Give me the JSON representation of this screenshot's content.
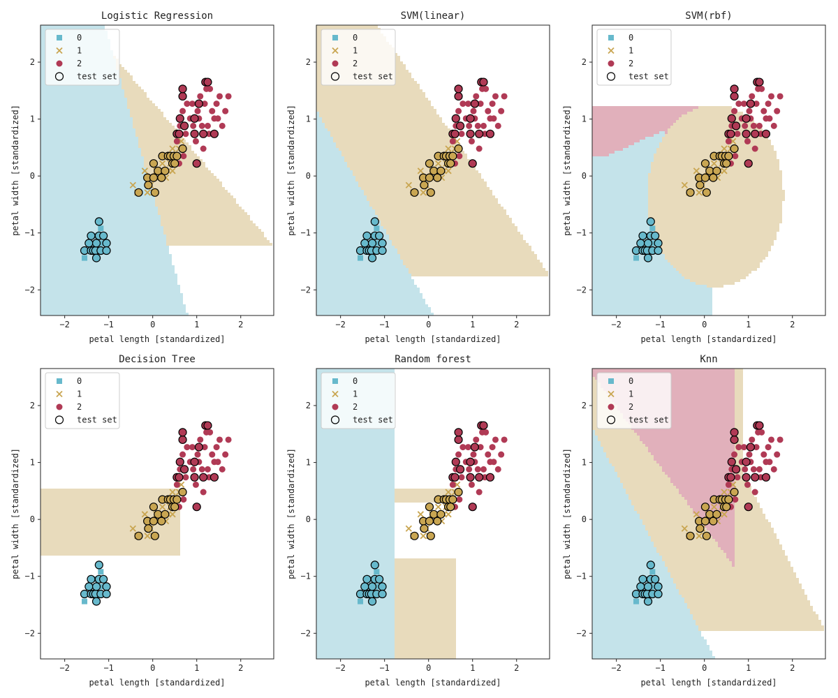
{
  "chart_data": [
    {
      "type": "scatter",
      "title": "Logistic Regression",
      "model": "lr",
      "xlabel": "petal length [standardized]",
      "ylabel": "petal width [standardized]",
      "xlim": [
        -2.55,
        2.75
      ],
      "ylim": [
        -2.45,
        2.65
      ]
    },
    {
      "type": "scatter",
      "title": "SVM(linear)",
      "model": "svm_linear",
      "xlabel": "petal length [standardized]",
      "ylabel": "petal width [standardized]",
      "xlim": [
        -2.55,
        2.75
      ],
      "ylim": [
        -2.45,
        2.65
      ]
    },
    {
      "type": "scatter",
      "title": "SVM(rbf)",
      "model": "svm_rbf",
      "xlabel": "petal length [standardized]",
      "ylabel": "petal width [standardized]",
      "xlim": [
        -2.55,
        2.75
      ],
      "ylim": [
        -2.45,
        2.65
      ]
    },
    {
      "type": "scatter",
      "title": "Decision Tree",
      "model": "tree",
      "xlabel": "petal length [standardized]",
      "ylabel": "petal width [standardized]",
      "xlim": [
        -2.55,
        2.75
      ],
      "ylim": [
        -2.45,
        2.65
      ]
    },
    {
      "type": "scatter",
      "title": "Random forest",
      "model": "forest",
      "xlabel": "petal length [standardized]",
      "ylabel": "petal width [standardized]",
      "xlim": [
        -2.55,
        2.75
      ],
      "ylim": [
        -2.45,
        2.65
      ]
    },
    {
      "type": "scatter",
      "title": "Knn",
      "model": "knn",
      "xlabel": "petal length [standardized]",
      "ylabel": "petal width [standardized]",
      "xlim": [
        -2.55,
        2.75
      ],
      "ylim": [
        -2.45,
        2.65
      ]
    }
  ],
  "shared": {
    "x_ticks": [
      -2,
      -1,
      0,
      1,
      2
    ],
    "y_ticks": [
      -2,
      -1,
      0,
      1,
      2
    ],
    "legend": {
      "placement": "upper left",
      "entries": [
        "0",
        "1",
        "2",
        "test set"
      ]
    },
    "class_colors": {
      "0": "#67b9cc",
      "1": "#c9a652",
      "2": "#b03a55"
    },
    "region_colors": {
      "0": "#c4e3ea",
      "1": "#e8dbbc",
      "2": "#e1b0bb"
    },
    "markers": {
      "0": "square",
      "1": "x",
      "2": "circle",
      "test set": "hollow-circle"
    },
    "train": {
      "0": [
        [
          -1.55,
          -1.44
        ],
        [
          -1.45,
          -1.31
        ],
        [
          -1.4,
          -1.31
        ],
        [
          -1.35,
          -1.31
        ],
        [
          -1.35,
          -1.18
        ],
        [
          -1.28,
          -1.18
        ],
        [
          -1.23,
          -1.31
        ],
        [
          -1.18,
          -1.18
        ],
        [
          -1.18,
          -0.92
        ],
        [
          -1.5,
          -1.31
        ],
        [
          -1.28,
          -1.05
        ],
        [
          -1.12,
          -1.18
        ]
      ],
      "1": [
        [
          -0.45,
          -0.16
        ],
        [
          -0.35,
          -0.29
        ],
        [
          -0.18,
          0.09
        ],
        [
          -0.12,
          -0.29
        ],
        [
          -0.05,
          -0.16
        ],
        [
          0.02,
          -0.29
        ],
        [
          0.1,
          -0.03
        ],
        [
          0.22,
          0.22
        ],
        [
          0.28,
          0.09
        ],
        [
          0.35,
          0.35
        ],
        [
          0.4,
          0.22
        ],
        [
          0.45,
          0.48
        ],
        [
          0.5,
          0.35
        ],
        [
          0.55,
          0.22
        ],
        [
          0.6,
          0.48
        ],
        [
          0.65,
          0.61
        ],
        [
          0.35,
          0.09
        ],
        [
          0.08,
          0.09
        ],
        [
          0.45,
          0.09
        ],
        [
          0.3,
          -0.03
        ]
      ],
      "2": [
        [
          0.55,
          0.61
        ],
        [
          0.62,
          0.88
        ],
        [
          0.68,
          1.14
        ],
        [
          0.75,
          0.74
        ],
        [
          0.85,
          1.01
        ],
        [
          0.9,
          1.27
        ],
        [
          0.95,
          0.74
        ],
        [
          1.02,
          1.14
        ],
        [
          1.08,
          1.4
        ],
        [
          1.12,
          0.88
        ],
        [
          1.18,
          1.27
        ],
        [
          1.22,
          1.53
        ],
        [
          1.28,
          0.74
        ],
        [
          1.35,
          1.14
        ],
        [
          1.4,
          1.01
        ],
        [
          1.45,
          1.27
        ],
        [
          1.52,
          1.4
        ],
        [
          1.58,
          0.88
        ],
        [
          1.65,
          1.14
        ],
        [
          1.72,
          1.4
        ],
        [
          0.6,
          0.22
        ],
        [
          0.7,
          0.35
        ],
        [
          0.98,
          0.61
        ],
        [
          1.15,
          0.48
        ],
        [
          0.78,
          1.27
        ],
        [
          1.05,
          1.01
        ],
        [
          1.3,
          1.53
        ],
        [
          1.25,
          0.88
        ],
        [
          0.92,
          0.88
        ],
        [
          1.48,
          1.01
        ]
      ]
    },
    "test": {
      "0": [
        [
          -1.55,
          -1.31
        ],
        [
          -1.45,
          -1.18
        ],
        [
          -1.4,
          -1.05
        ],
        [
          -1.4,
          -1.31
        ],
        [
          -1.35,
          -1.31
        ],
        [
          -1.3,
          -1.31
        ],
        [
          -1.28,
          -1.18
        ],
        [
          -1.28,
          -1.44
        ],
        [
          -1.22,
          -0.8
        ],
        [
          -1.22,
          -1.05
        ],
        [
          -1.18,
          -1.31
        ],
        [
          -1.12,
          -1.05
        ],
        [
          -1.05,
          -1.18
        ],
        [
          -1.05,
          -1.31
        ]
      ],
      "1": [
        [
          -0.32,
          -0.29
        ],
        [
          -0.12,
          -0.03
        ],
        [
          -0.1,
          -0.16
        ],
        [
          0.02,
          -0.03
        ],
        [
          0.02,
          0.22
        ],
        [
          0.05,
          -0.29
        ],
        [
          0.12,
          0.09
        ],
        [
          0.2,
          -0.03
        ],
        [
          0.22,
          0.35
        ],
        [
          0.28,
          0.09
        ],
        [
          0.35,
          0.35
        ],
        [
          0.4,
          0.35
        ],
        [
          0.45,
          0.22
        ],
        [
          0.48,
          0.35
        ],
        [
          0.5,
          0.22
        ],
        [
          0.55,
          0.35
        ],
        [
          0.68,
          0.48
        ]
      ],
      "2": [
        [
          0.55,
          0.74
        ],
        [
          0.6,
          0.74
        ],
        [
          0.62,
          1.01
        ],
        [
          0.68,
          1.4
        ],
        [
          0.68,
          1.53
        ],
        [
          0.72,
          0.88
        ],
        [
          0.95,
          0.74
        ],
        [
          0.95,
          1.01
        ],
        [
          1.0,
          0.22
        ],
        [
          1.05,
          1.27
        ],
        [
          1.15,
          0.74
        ],
        [
          1.2,
          1.65
        ],
        [
          1.25,
          1.65
        ],
        [
          1.4,
          0.74
        ]
      ]
    }
  }
}
